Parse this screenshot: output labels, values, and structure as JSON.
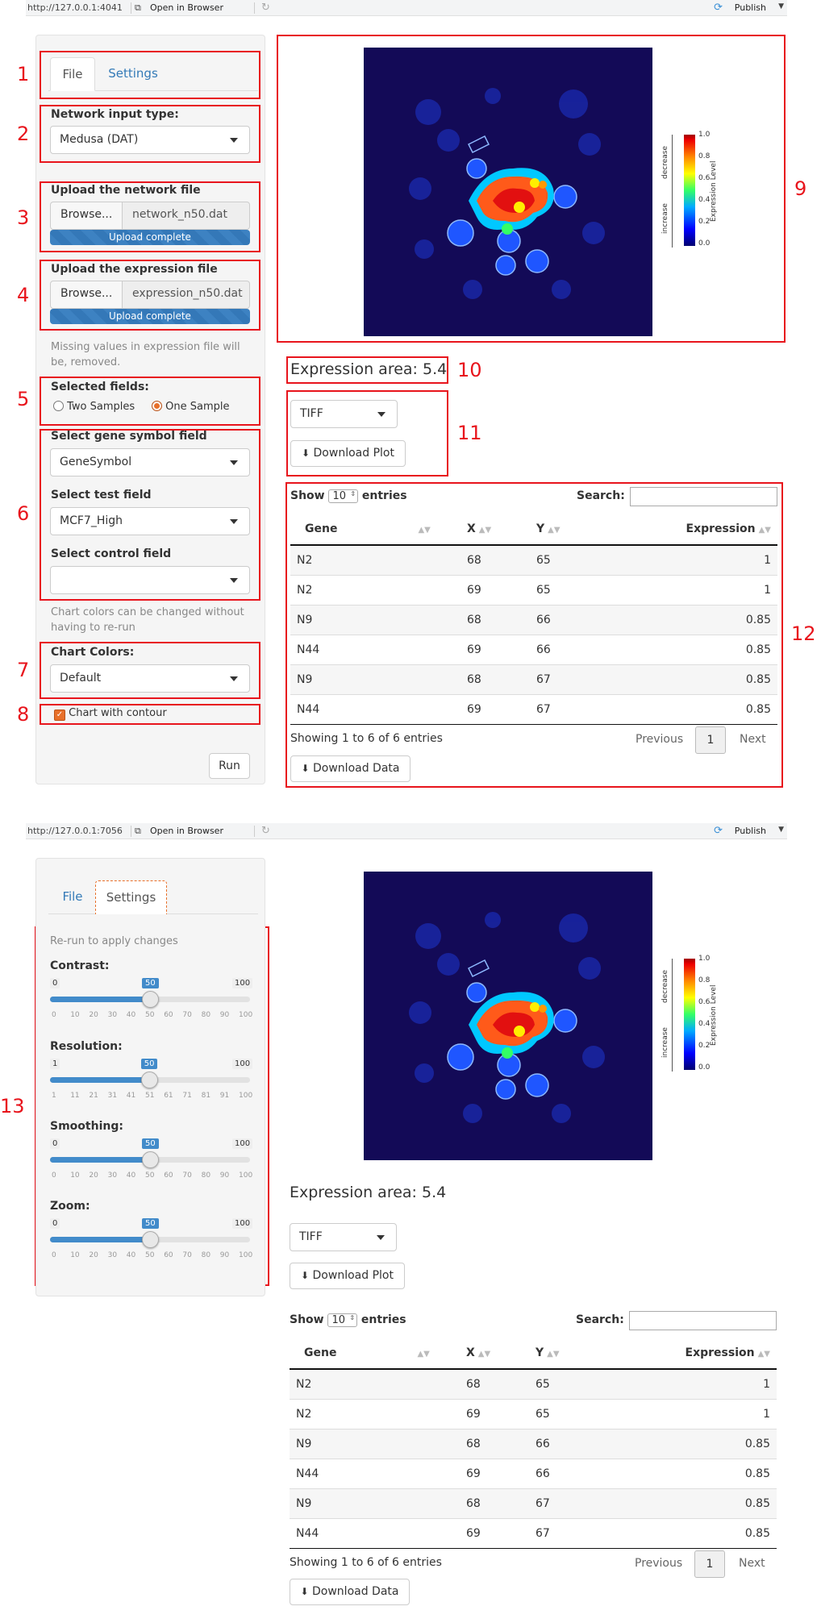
{
  "topbar": {
    "url1": "http://127.0.0.1:4041",
    "url2": "http://127.0.0.1:7056",
    "open_in_browser": "Open in Browser",
    "publish": "Publish"
  },
  "numbers": [
    "1",
    "2",
    "3",
    "4",
    "5",
    "6",
    "7",
    "8",
    "9",
    "10",
    "11",
    "12",
    "13"
  ],
  "tabs": {
    "file": "File",
    "settings": "Settings"
  },
  "network": {
    "label": "Network input type:",
    "value": "Medusa (DAT)"
  },
  "upload_network": {
    "label": "Upload the network file",
    "browse": "Browse...",
    "filename": "network_n50.dat",
    "status": "Upload complete"
  },
  "upload_expression": {
    "label": "Upload the expression file",
    "browse": "Browse...",
    "filename": "expression_n50.dat",
    "status": "Upload complete"
  },
  "missing_help": "Missing values in expression file will be, removed.",
  "fields": {
    "label": "Selected fields:",
    "options": [
      "Two Samples",
      "One Sample"
    ],
    "selected": "One Sample"
  },
  "gene_field": {
    "label": "Select gene symbol field",
    "value": "GeneSymbol"
  },
  "test_field": {
    "label": "Select test field",
    "value": "MCF7_High"
  },
  "control_field": {
    "label": "Select control field",
    "value": ""
  },
  "colors_help": "Chart colors can be changed without having to re-run",
  "chart_colors": {
    "label": "Chart Colors:",
    "value": "Default"
  },
  "contour": {
    "label": "Chart with contour",
    "checked": true
  },
  "run_button": "Run",
  "plot": {
    "colorbar_ticks": [
      "1.0",
      "0.8",
      "0.6",
      "0.4",
      "0.2",
      "0.0"
    ],
    "colorbar_label": "Expression Level",
    "decrease": "decrease",
    "increase": "increase"
  },
  "expression_area": "Expression area: 5.4",
  "format_select": "TIFF",
  "download_plot": "Download Plot",
  "table": {
    "show": "Show",
    "length": "10",
    "entries": "entries",
    "search": "Search:",
    "columns": [
      "Gene",
      "X",
      "Y",
      "Expression"
    ],
    "rows": [
      [
        "N2",
        "68",
        "65",
        "1"
      ],
      [
        "N2",
        "69",
        "65",
        "1"
      ],
      [
        "N9",
        "68",
        "66",
        "0.85"
      ],
      [
        "N44",
        "69",
        "66",
        "0.85"
      ],
      [
        "N9",
        "68",
        "67",
        "0.85"
      ],
      [
        "N44",
        "69",
        "67",
        "0.85"
      ]
    ],
    "info": "Showing 1 to 6 of 6 entries",
    "previous": "Previous",
    "page": "1",
    "next": "Next"
  },
  "download_data": "Download Data",
  "settings": {
    "help": "Re-run to apply changes",
    "sliders": [
      {
        "label": "Contrast:",
        "min": "0",
        "max": "100",
        "value": "50",
        "fraction": 0.5,
        "ticks": [
          "0",
          "10",
          "20",
          "30",
          "40",
          "50",
          "60",
          "70",
          "80",
          "90",
          "100"
        ]
      },
      {
        "label": "Resolution:",
        "min": "1",
        "max": "100",
        "value": "50",
        "fraction": 0.495,
        "ticks": [
          "1",
          "11",
          "21",
          "31",
          "41",
          "51",
          "61",
          "71",
          "81",
          "91",
          "100"
        ]
      },
      {
        "label": "Smoothing:",
        "min": "0",
        "max": "100",
        "value": "50",
        "fraction": 0.5,
        "ticks": [
          "0",
          "10",
          "20",
          "30",
          "40",
          "50",
          "60",
          "70",
          "80",
          "90",
          "100"
        ]
      },
      {
        "label": "Zoom:",
        "min": "0",
        "max": "100",
        "value": "50",
        "fraction": 0.5,
        "ticks": [
          "0",
          "10",
          "20",
          "30",
          "40",
          "50",
          "60",
          "70",
          "80",
          "90",
          "100"
        ]
      }
    ]
  }
}
